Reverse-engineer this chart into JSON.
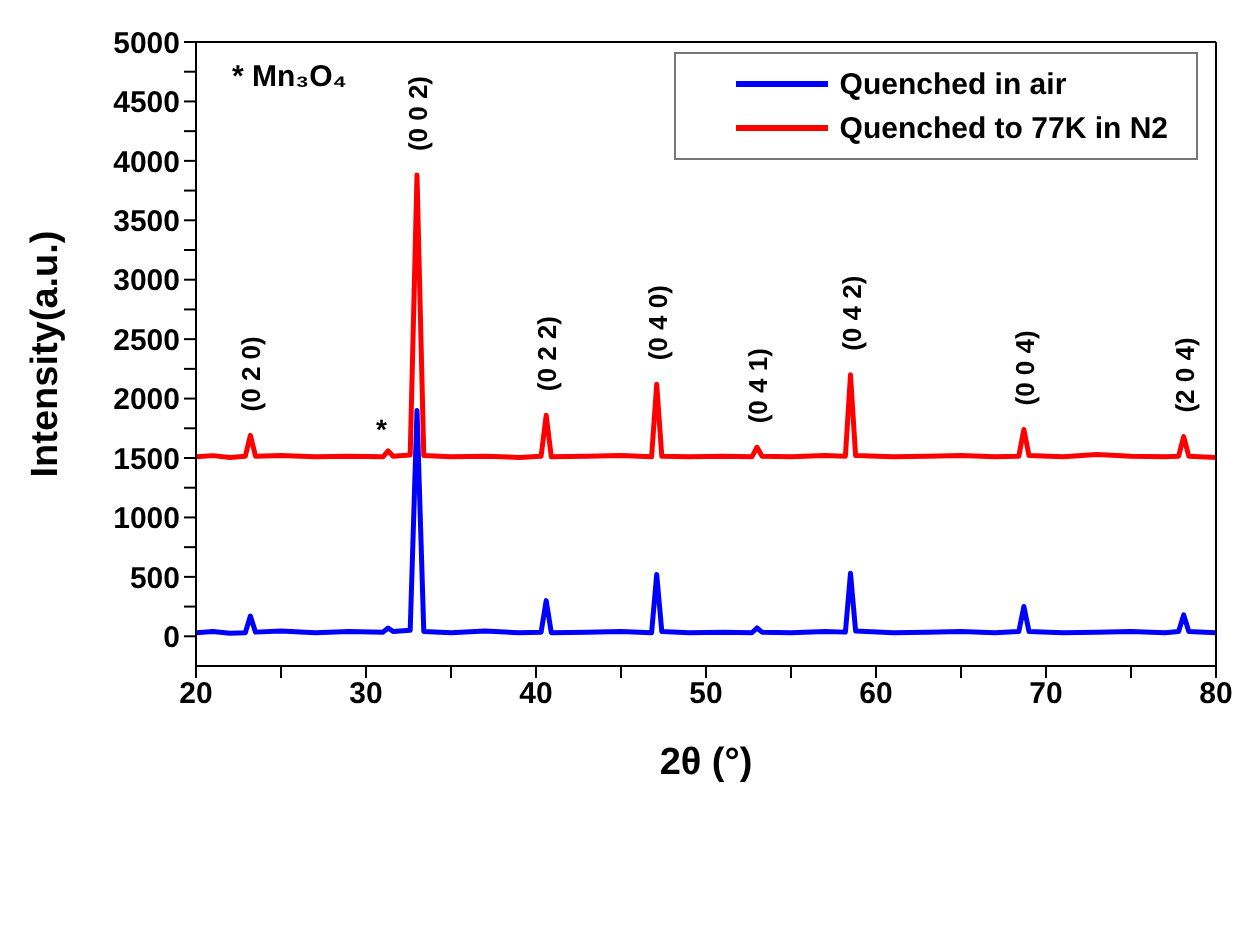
{
  "chart_data": {
    "type": "line",
    "xlabel": "2θ (°)",
    "ylabel": "Intensity(a.u.)",
    "xlim": [
      20,
      80
    ],
    "ylim": [
      -250,
      5000
    ],
    "xticks": [
      20,
      {
        "value": 25,
        "label": null
      },
      30,
      {
        "value": 35,
        "label": null
      },
      40,
      {
        "value": 45,
        "label": null
      },
      50,
      {
        "value": 55,
        "label": null
      },
      60,
      {
        "value": 65,
        "label": null
      },
      70,
      {
        "value": 75,
        "label": null
      },
      80
    ],
    "yticks": [
      0,
      {
        "value": 250,
        "label": null
      },
      500,
      {
        "value": 750,
        "label": null
      },
      1000,
      {
        "value": 1250,
        "label": null
      },
      1500,
      {
        "value": 1750,
        "label": null
      },
      2000,
      {
        "value": 2250,
        "label": null
      },
      2500,
      {
        "value": 2750,
        "label": null
      },
      3000,
      {
        "value": 3250,
        "label": null
      },
      3500,
      {
        "value": 3750,
        "label": null
      },
      4000,
      {
        "value": 4250,
        "label": null
      },
      4500,
      {
        "value": 4750,
        "label": null
      },
      5000
    ],
    "grid": false,
    "legend": "top right",
    "line_style": "solid",
    "x": [
      20,
      21,
      22,
      22.9,
      23.2,
      23.5,
      25,
      27,
      29,
      31,
      31.3,
      31.6,
      32.6,
      33,
      33.4,
      35,
      37,
      39,
      40.3,
      40.6,
      40.9,
      43,
      45,
      46.8,
      47.1,
      47.4,
      49,
      51,
      52.7,
      53,
      53.3,
      55,
      57,
      58.2,
      58.5,
      58.8,
      61,
      63,
      65,
      67,
      68.4,
      68.7,
      69,
      71,
      73,
      75,
      77,
      77.8,
      78.1,
      78.4,
      80
    ],
    "series": [
      {
        "name": "Quenched in air",
        "color": "#0000ff",
        "values": [
          30,
          40,
          25,
          30,
          170,
          35,
          45,
          30,
          40,
          35,
          70,
          40,
          50,
          1900,
          40,
          30,
          45,
          30,
          35,
          300,
          30,
          35,
          40,
          30,
          520,
          40,
          30,
          35,
          30,
          70,
          35,
          30,
          40,
          35,
          530,
          45,
          30,
          35,
          40,
          30,
          40,
          250,
          40,
          30,
          35,
          40,
          30,
          40,
          180,
          40,
          30
        ]
      },
      {
        "name": "Quenched to 77K in N2",
        "color": "#ff0000",
        "values": [
          1510,
          1520,
          1505,
          1515,
          1690,
          1515,
          1520,
          1510,
          1515,
          1510,
          1560,
          1515,
          1525,
          3880,
          1520,
          1510,
          1515,
          1505,
          1515,
          1860,
          1510,
          1515,
          1520,
          1510,
          2120,
          1515,
          1510,
          1515,
          1510,
          1590,
          1515,
          1510,
          1520,
          1515,
          2200,
          1520,
          1510,
          1515,
          1520,
          1510,
          1515,
          1740,
          1520,
          1510,
          1530,
          1515,
          1510,
          1515,
          1680,
          1515,
          1505
        ]
      }
    ],
    "annotations": [
      "* Mn₃O₄",
      {
        "text": "(0 2 0)",
        "x": 23.2,
        "y": 1690
      },
      {
        "text": "*",
        "x": 31.3,
        "y": 1560
      },
      {
        "text": "(0 0 2)",
        "x": 33,
        "y": 3880
      },
      {
        "text": "(0 2 2)",
        "x": 40.6,
        "y": 1860
      },
      {
        "text": "(0 4 0)",
        "x": 47.1,
        "y": 2120
      },
      {
        "text": "(0 4 1)",
        "x": 53,
        "y": 1590
      },
      {
        "text": "(0 4 2)",
        "x": 58.5,
        "y": 2200
      },
      {
        "text": "(0 0 4)",
        "x": 68.7,
        "y": 1740
      },
      {
        "text": "(2 0 4)",
        "x": 78.1,
        "y": 1680
      }
    ]
  }
}
